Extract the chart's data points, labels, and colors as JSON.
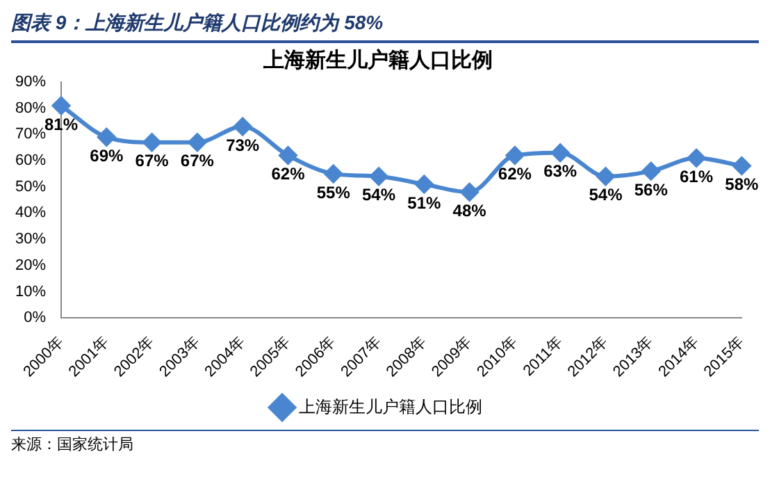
{
  "chart_data": {
    "type": "line",
    "title": "上海新生儿户籍人口比例",
    "subtitle": "图表 9：上海新生儿户籍人口比例约为 58%",
    "categories": [
      "2000年",
      "2001年",
      "2002年",
      "2003年",
      "2004年",
      "2005年",
      "2006年",
      "2007年",
      "2008年",
      "2009年",
      "2010年",
      "2011年",
      "2012年",
      "2013年",
      "2014年",
      "2015年"
    ],
    "series": [
      {
        "name": "上海新生儿户籍人口比例",
        "color": "#4a86d0",
        "values": [
          81,
          69,
          67,
          67,
          73,
          62,
          55,
          54,
          51,
          48,
          62,
          63,
          54,
          56,
          61,
          58
        ],
        "value_labels": [
          "81%",
          "69%",
          "67%",
          "67%",
          "73%",
          "62%",
          "55%",
          "54%",
          "51%",
          "48%",
          "62%",
          "63%",
          "54%",
          "56%",
          "61%",
          "58%"
        ]
      }
    ],
    "ylim": [
      0,
      90
    ],
    "yticks": [
      {
        "value": 0,
        "label": "0%"
      },
      {
        "value": 10,
        "label": "10%"
      },
      {
        "value": 20,
        "label": "20%"
      },
      {
        "value": 30,
        "label": "30%"
      },
      {
        "value": 40,
        "label": "40%"
      },
      {
        "value": 50,
        "label": "50%"
      },
      {
        "value": 60,
        "label": "60%"
      },
      {
        "value": 70,
        "label": "70%"
      },
      {
        "value": 80,
        "label": "80%"
      },
      {
        "value": 90,
        "label": "90%"
      }
    ],
    "grid": false,
    "legend": "bottom",
    "marker": "diamond",
    "line_style": "solid",
    "annotations": [
      "来源：国家统计局"
    ]
  }
}
